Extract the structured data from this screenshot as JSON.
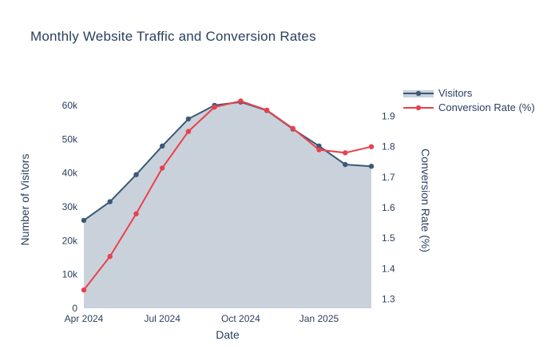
{
  "chart_data": {
    "type": "line",
    "title": "Monthly Website Traffic and Conversion Rates",
    "xlabel": "Date",
    "ylabel_left": "Number of Visitors",
    "ylabel_right": "Conversion Rate (%)",
    "x": [
      "Apr 2024",
      "May 2024",
      "Jun 2024",
      "Jul 2024",
      "Aug 2024",
      "Sep 2024",
      "Oct 2024",
      "Nov 2024",
      "Dec 2024",
      "Jan 2025",
      "Feb 2025",
      "Mar 2025"
    ],
    "x_tick_labels": [
      "Apr 2024",
      "Jul 2024",
      "Oct 2024",
      "Jan 2025"
    ],
    "x_tick_index": [
      0,
      3,
      6,
      9
    ],
    "series": [
      {
        "name": "Visitors",
        "axis": "left",
        "style": "line+markers+area",
        "values": [
          26000,
          31500,
          39500,
          48000,
          56000,
          60000,
          61000,
          58500,
          53000,
          48000,
          42500,
          42000
        ]
      },
      {
        "name": "Conversion Rate (%)",
        "axis": "right",
        "style": "line+markers",
        "values": [
          1.33,
          1.44,
          1.58,
          1.73,
          1.85,
          1.93,
          1.95,
          1.92,
          1.86,
          1.79,
          1.78,
          1.8
        ]
      }
    ],
    "y_left_ticks": {
      "values": [
        0,
        10000,
        20000,
        30000,
        40000,
        50000,
        60000
      ],
      "labels": [
        "0",
        "10k",
        "20k",
        "30k",
        "40k",
        "50k",
        "60k"
      ]
    },
    "y_right_ticks": {
      "values": [
        1.3,
        1.4,
        1.5,
        1.6,
        1.7,
        1.8,
        1.9
      ],
      "labels": [
        "1.3",
        "1.4",
        "1.5",
        "1.6",
        "1.7",
        "1.8",
        "1.9"
      ]
    },
    "ylim_left": [
      0,
      64000
    ],
    "ylim_right": [
      1.27,
      1.98
    ],
    "grid": false,
    "legend_position": "right"
  },
  "colors": {
    "text": "#2a3f5f",
    "visitors_line": "#3b5977",
    "visitors_fill": "#c9d1db",
    "conversion_line": "#e8414d",
    "background": "#ffffff"
  }
}
